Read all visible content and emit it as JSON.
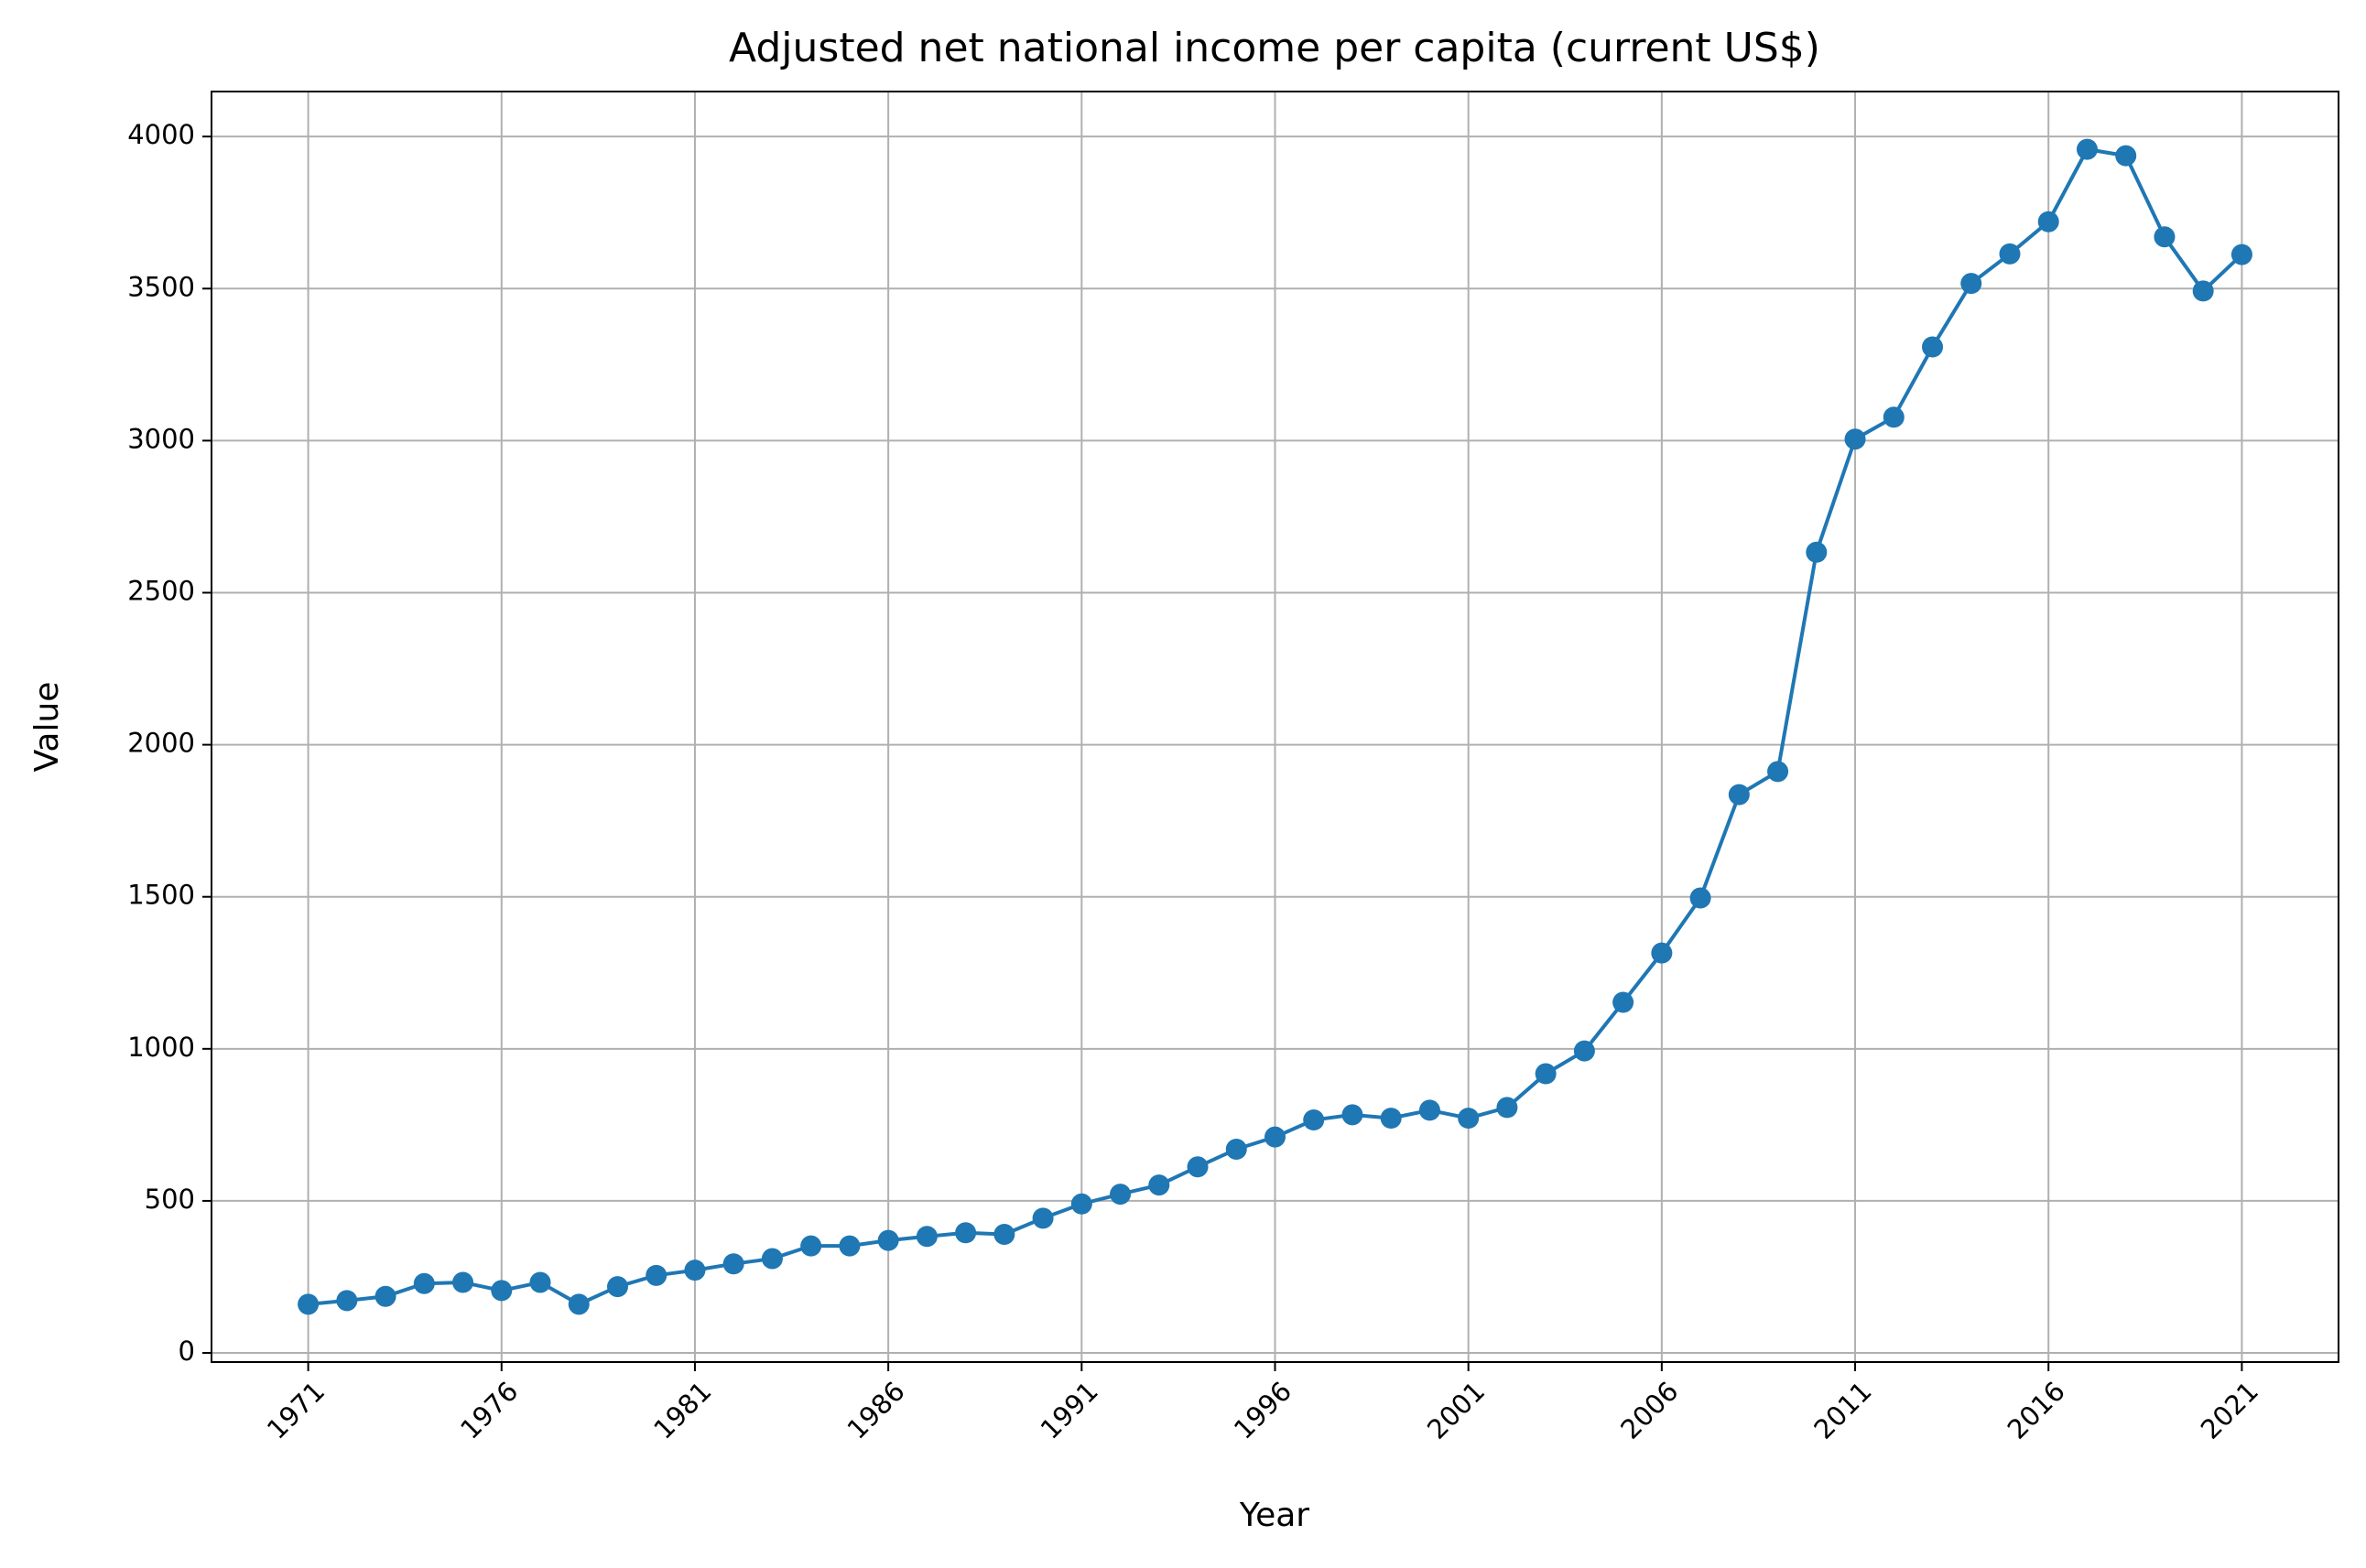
{
  "chart_data": {
    "type": "line",
    "title": "Adjusted net national income per capita (current US$)",
    "xlabel": "Year",
    "ylabel": "Value",
    "x": [
      1971,
      1972,
      1973,
      1974,
      1975,
      1976,
      1977,
      1978,
      1979,
      1980,
      1981,
      1982,
      1983,
      1984,
      1985,
      1986,
      1987,
      1988,
      1989,
      1990,
      1991,
      1992,
      1993,
      1994,
      1995,
      1996,
      1997,
      1998,
      1999,
      2000,
      2001,
      2002,
      2003,
      2004,
      2005,
      2006,
      2007,
      2008,
      2009,
      2010,
      2011,
      2012,
      2013,
      2014,
      2015,
      2016,
      2017,
      2018,
      2019,
      2020,
      2021
    ],
    "series": [
      {
        "name": "Value",
        "color": "#1f77b4",
        "values": [
          160,
          172,
          186,
          228,
          232,
          205,
          232,
          160,
          218,
          255,
          272,
          293,
          310,
          352,
          352,
          370,
          383,
          395,
          390,
          443,
          490,
          522,
          552,
          612,
          670,
          710,
          766,
          783,
          772,
          798,
          772,
          807,
          918,
          993,
          1153,
          1315,
          1496,
          1836,
          1912,
          2633,
          3005,
          3077,
          3308,
          3517,
          3614,
          3720,
          3958,
          3937,
          3670,
          3492,
          3612
        ]
      }
    ],
    "xlim": [
      1968.5,
      2023.5
    ],
    "xticks": [
      1971,
      1976,
      1981,
      1986,
      1991,
      1996,
      2001,
      2006,
      2011,
      2016,
      2021
    ],
    "ylim": [
      -30,
      4148
    ],
    "yticks": [
      0,
      500,
      1000,
      1500,
      2000,
      2500,
      3000,
      3500,
      4000
    ],
    "grid": true
  }
}
